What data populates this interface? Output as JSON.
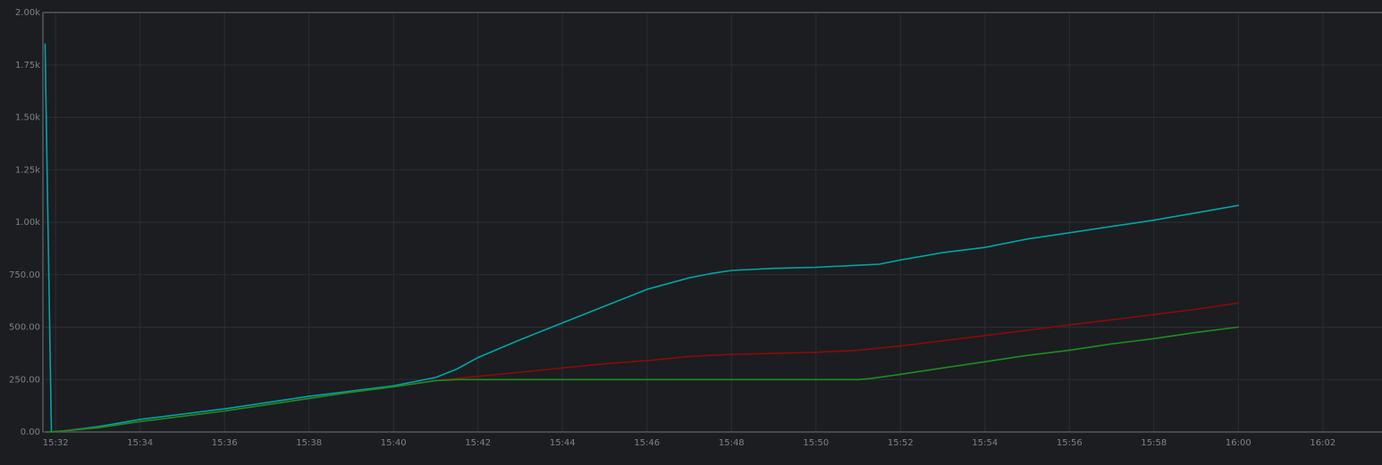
{
  "chart_data": {
    "type": "line",
    "title": "",
    "xlabel": "",
    "ylabel": "",
    "x_axis": {
      "unit": "minutes",
      "min": 31.7,
      "max": 63.4,
      "ticks": [
        {
          "value": 32,
          "label": "15:32"
        },
        {
          "value": 34,
          "label": "15:34"
        },
        {
          "value": 36,
          "label": "15:36"
        },
        {
          "value": 38,
          "label": "15:38"
        },
        {
          "value": 40,
          "label": "15:40"
        },
        {
          "value": 42,
          "label": "15:42"
        },
        {
          "value": 44,
          "label": "15:44"
        },
        {
          "value": 46,
          "label": "15:46"
        },
        {
          "value": 48,
          "label": "15:48"
        },
        {
          "value": 50,
          "label": "15:50"
        },
        {
          "value": 52,
          "label": "15:52"
        },
        {
          "value": 54,
          "label": "15:54"
        },
        {
          "value": 56,
          "label": "15:56"
        },
        {
          "value": 58,
          "label": "15:58"
        },
        {
          "value": 60,
          "label": "16:00"
        },
        {
          "value": 62,
          "label": "16:02"
        }
      ]
    },
    "y_axis": {
      "min": 0,
      "max": 2000,
      "ticks": [
        {
          "value": 0,
          "label": "0.00"
        },
        {
          "value": 250,
          "label": "250.00"
        },
        {
          "value": 500,
          "label": "500.00"
        },
        {
          "value": 750,
          "label": "750.00"
        },
        {
          "value": 1000,
          "label": "1.00k"
        },
        {
          "value": 1250,
          "label": "1.25k"
        },
        {
          "value": 1500,
          "label": "1.50k"
        },
        {
          "value": 1750,
          "label": "1.75k"
        },
        {
          "value": 2000,
          "label": "2.00k"
        }
      ]
    },
    "grid": true,
    "legend": "none",
    "series": [
      {
        "color": "#00a5a5",
        "x": [
          31.75,
          31.9,
          32.2,
          33,
          34,
          35,
          36,
          37,
          38,
          39,
          40,
          41,
          41.5,
          42,
          43,
          44,
          45,
          46,
          47,
          47.5,
          48,
          49,
          50,
          51,
          51.5,
          52,
          53,
          54,
          55,
          56,
          57,
          58,
          59,
          60
        ],
        "y": [
          1850,
          0,
          5,
          25,
          60,
          85,
          110,
          140,
          170,
          195,
          220,
          260,
          300,
          355,
          440,
          520,
          600,
          680,
          735,
          755,
          770,
          780,
          785,
          795,
          800,
          820,
          855,
          880,
          920,
          950,
          980,
          1010,
          1045,
          1080
        ]
      },
      {
        "color": "#8c0a0a",
        "x": [
          31.8,
          32.2,
          33,
          34,
          35,
          36,
          37,
          38,
          39,
          40,
          41,
          41.5,
          42,
          43,
          44,
          45,
          46,
          47,
          48,
          49,
          50,
          51,
          52,
          53,
          54,
          55,
          56,
          57,
          58,
          59,
          60
        ],
        "y": [
          0,
          5,
          20,
          50,
          75,
          100,
          130,
          160,
          190,
          215,
          245,
          255,
          265,
          285,
          305,
          325,
          340,
          360,
          370,
          375,
          380,
          390,
          410,
          435,
          460,
          485,
          510,
          535,
          560,
          585,
          615
        ]
      },
      {
        "color": "#1e8c1e",
        "x": [
          31.8,
          32.2,
          33,
          34,
          35,
          36,
          37,
          38,
          39,
          40,
          41,
          41.5,
          42,
          43,
          44,
          45,
          46,
          47,
          48,
          49,
          50,
          51,
          51.3,
          52,
          53,
          54,
          55,
          56,
          57,
          58,
          59,
          60
        ],
        "y": [
          0,
          5,
          20,
          50,
          75,
          100,
          130,
          160,
          190,
          215,
          245,
          250,
          250,
          250,
          250,
          250,
          250,
          250,
          250,
          250,
          250,
          250,
          255,
          275,
          305,
          335,
          365,
          390,
          420,
          445,
          475,
          500
        ]
      }
    ]
  }
}
